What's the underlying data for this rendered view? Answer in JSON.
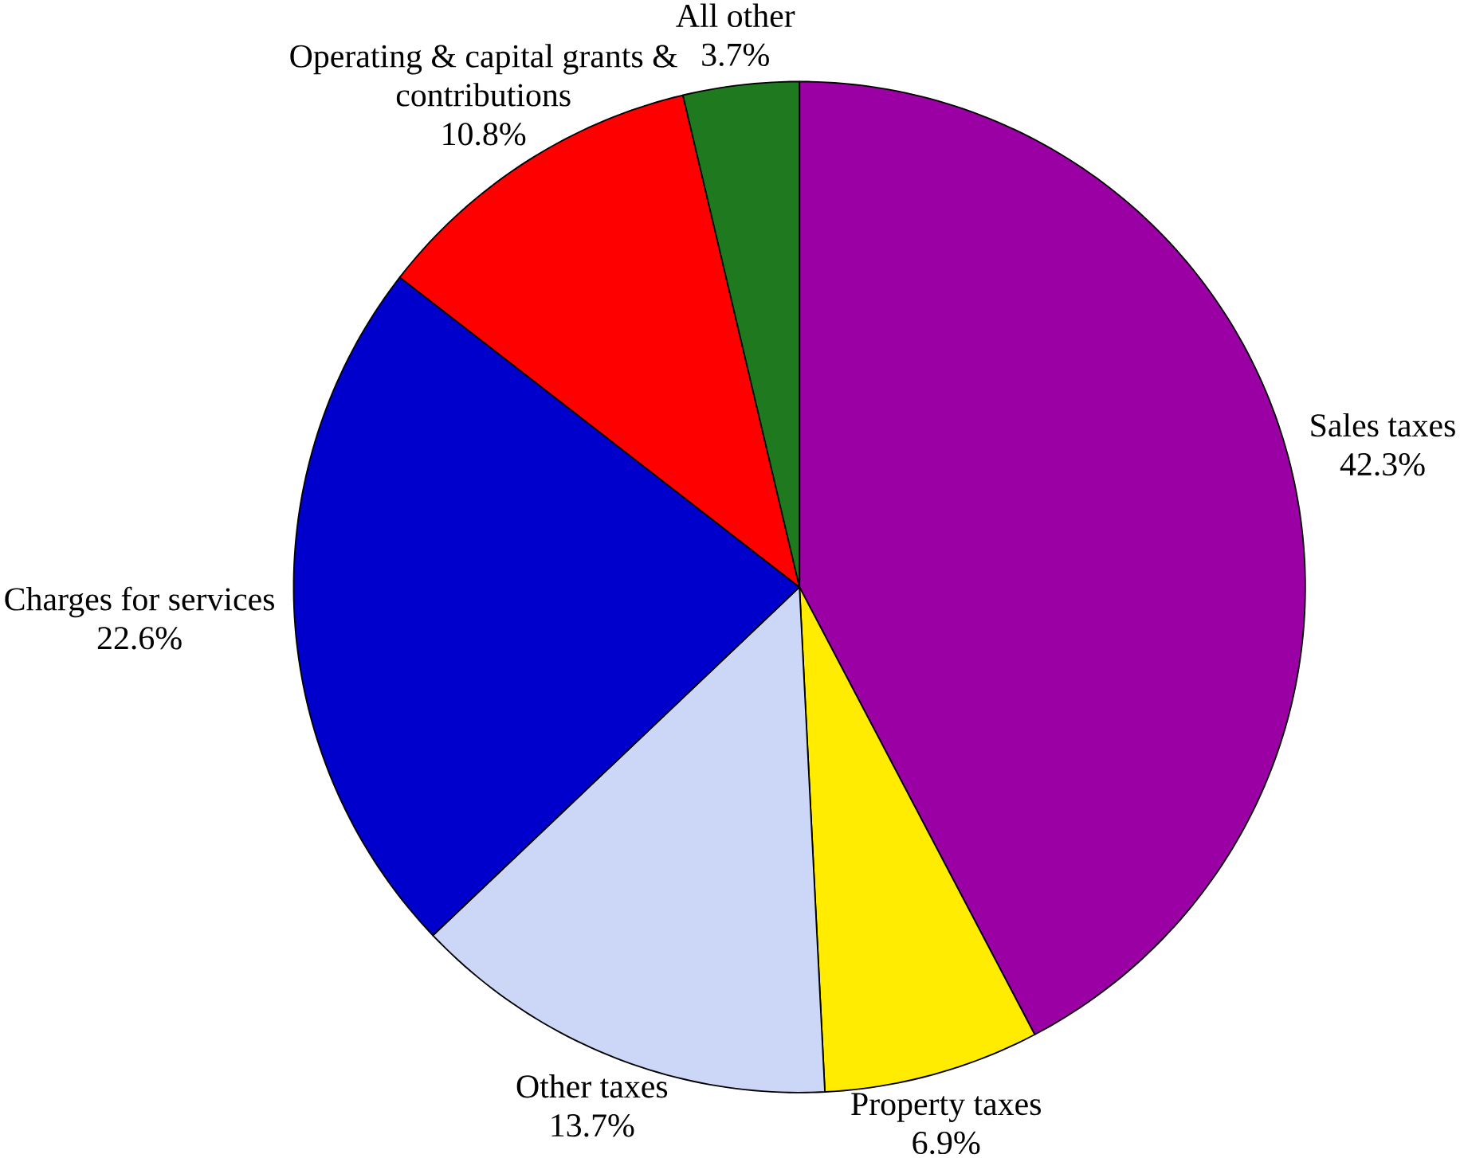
{
  "chart_data": {
    "type": "pie",
    "categories": [
      "Sales taxes",
      "Property taxes",
      "Other taxes",
      "Charges for services",
      "Operating & capital grants & contributions",
      "All other"
    ],
    "values": [
      42.3,
      6.9,
      13.7,
      22.6,
      10.8,
      3.7
    ],
    "value_labels": [
      "42.3%",
      "6.9%",
      "13.7%",
      "22.6%",
      "10.8%",
      "3.7%"
    ],
    "colors": [
      "#9a00a3",
      "#ffec00",
      "#ccd6f6",
      "#0000cc",
      "#ff0000",
      "#1f7a1f"
    ]
  }
}
